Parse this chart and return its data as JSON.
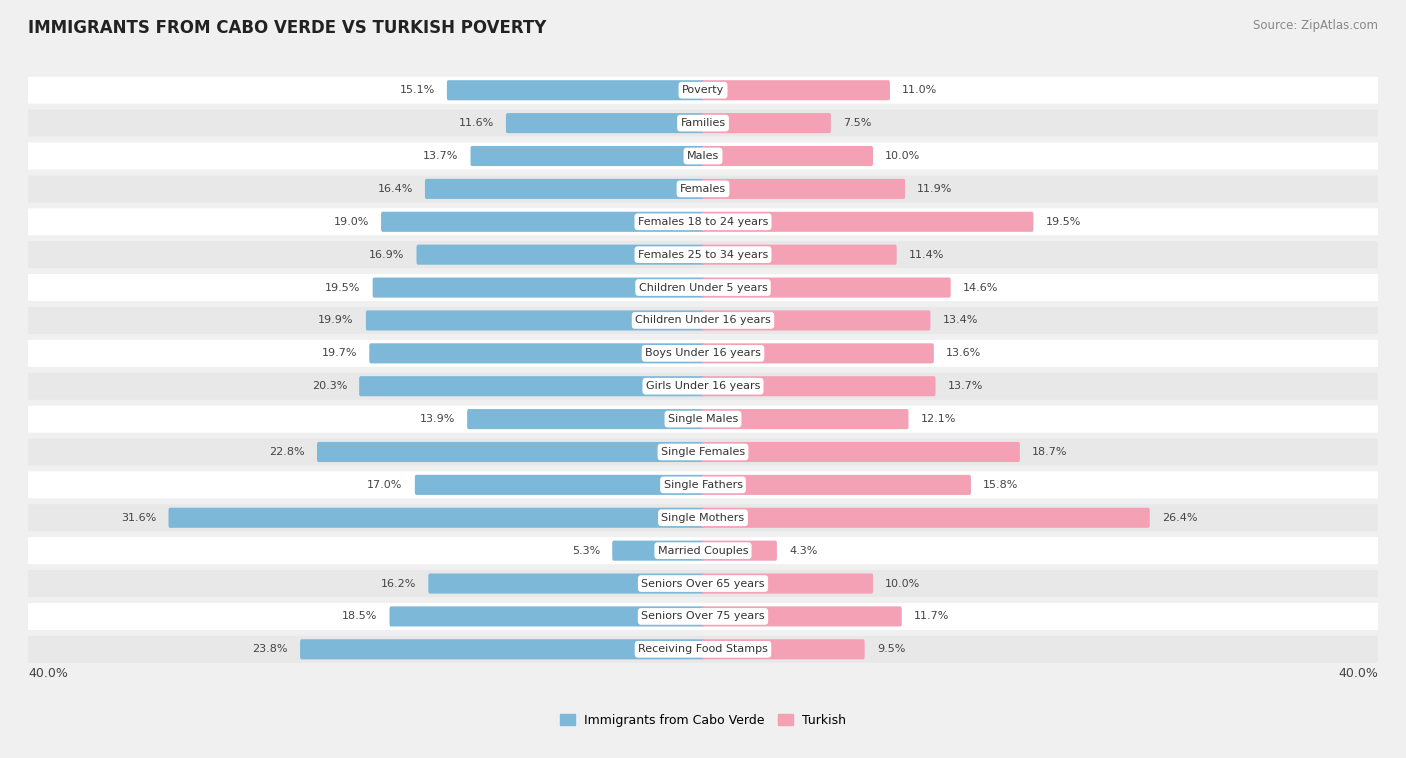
{
  "title": "IMMIGRANTS FROM CABO VERDE VS TURKISH POVERTY",
  "source": "Source: ZipAtlas.com",
  "categories": [
    "Poverty",
    "Families",
    "Males",
    "Females",
    "Females 18 to 24 years",
    "Females 25 to 34 years",
    "Children Under 5 years",
    "Children Under 16 years",
    "Boys Under 16 years",
    "Girls Under 16 years",
    "Single Males",
    "Single Females",
    "Single Fathers",
    "Single Mothers",
    "Married Couples",
    "Seniors Over 65 years",
    "Seniors Over 75 years",
    "Receiving Food Stamps"
  ],
  "cabo_verde": [
    15.1,
    11.6,
    13.7,
    16.4,
    19.0,
    16.9,
    19.5,
    19.9,
    19.7,
    20.3,
    13.9,
    22.8,
    17.0,
    31.6,
    5.3,
    16.2,
    18.5,
    23.8
  ],
  "turkish": [
    11.0,
    7.5,
    10.0,
    11.9,
    19.5,
    11.4,
    14.6,
    13.4,
    13.6,
    13.7,
    12.1,
    18.7,
    15.8,
    26.4,
    4.3,
    10.0,
    11.7,
    9.5
  ],
  "cabo_verde_color": "#7db8d8",
  "turkish_color": "#f4a0b5",
  "background_color": "#f0f0f0",
  "row_color_odd": "#ffffff",
  "row_color_even": "#e8e8e8",
  "max_val": 40.0,
  "legend_cabo_verde": "Immigrants from Cabo Verde",
  "legend_turkish": "Turkish"
}
